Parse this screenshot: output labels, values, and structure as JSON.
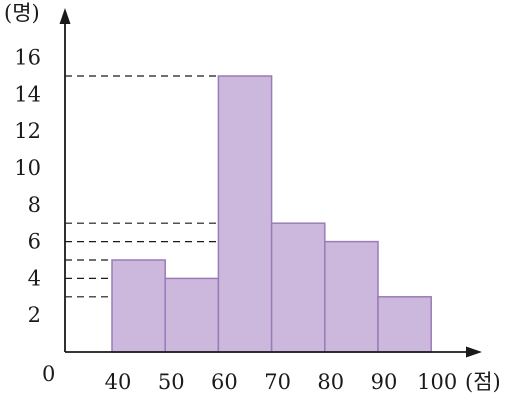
{
  "chart_data": {
    "type": "bar",
    "subtype": "histogram",
    "x_unit_label": "(점)",
    "y_unit_label": "(명)",
    "origin_label": "0",
    "bins": [
      {
        "from": 40,
        "to": 50,
        "value": 5
      },
      {
        "from": 50,
        "to": 60,
        "value": 4
      },
      {
        "from": 60,
        "to": 70,
        "value": 15
      },
      {
        "from": 70,
        "to": 80,
        "value": 7
      },
      {
        "from": 80,
        "to": 90,
        "value": 6
      },
      {
        "from": 90,
        "to": 100,
        "value": 3
      }
    ],
    "x_ticks": [
      "40",
      "50",
      "60",
      "70",
      "80",
      "90",
      "100"
    ],
    "y_ticks": [
      "2",
      "4",
      "6",
      "8",
      "10",
      "12",
      "14",
      "16"
    ],
    "xlim": [
      30,
      100
    ],
    "ylim": [
      0,
      16
    ],
    "dashed_guide_lines": true,
    "grid": false,
    "bar_color": "#cdb8dd",
    "bar_edge_color": "#9b7bb8"
  }
}
